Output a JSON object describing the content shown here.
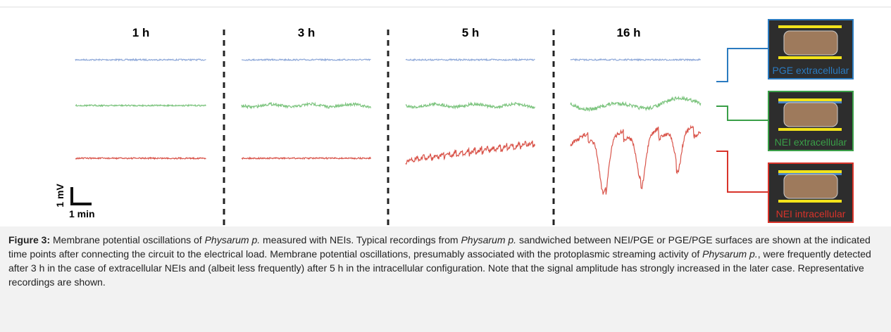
{
  "figure": {
    "time_labels": [
      "1 h",
      "3 h",
      "5 h",
      "16 h"
    ],
    "scale_bar": {
      "vertical": "1 mV",
      "horizontal": "1 min"
    },
    "configs": [
      {
        "label": "PGE extracellular",
        "color": "#2b7bc0",
        "trace_color": "#8fa9d9"
      },
      {
        "label": "NEI extracellular",
        "color": "#3a9f48",
        "trace_color": "#7cc47e"
      },
      {
        "label": "NEI intracellular",
        "color": "#d8332a",
        "trace_color": "#d9544a"
      }
    ]
  },
  "caption": {
    "label": "Figure 3:",
    "parts": [
      {
        "text": " Membrane potential oscillations of ",
        "italic": false
      },
      {
        "text": "Physarum p.",
        "italic": true
      },
      {
        "text": " measured with NEIs. Typical recordings from ",
        "italic": false
      },
      {
        "text": "Physarum p.",
        "italic": true
      },
      {
        "text": " sandwiched between NEI/PGE or PGE/PGE surfaces are shown at the indicated time points after connecting the circuit to the electrical load. Membrane potential oscillations, presumably associated with the protoplasmic streaming activity of ",
        "italic": false
      },
      {
        "text": "Physarum p.",
        "italic": true
      },
      {
        "text": ", were frequently detected after 3 h in the case of extracellular NEIs and (albeit less frequently) after 5 h in the intracellular configuration. Note that the signal amplitude has strongly increased in the later case. Representative recordings are shown.",
        "italic": false
      }
    ]
  }
}
